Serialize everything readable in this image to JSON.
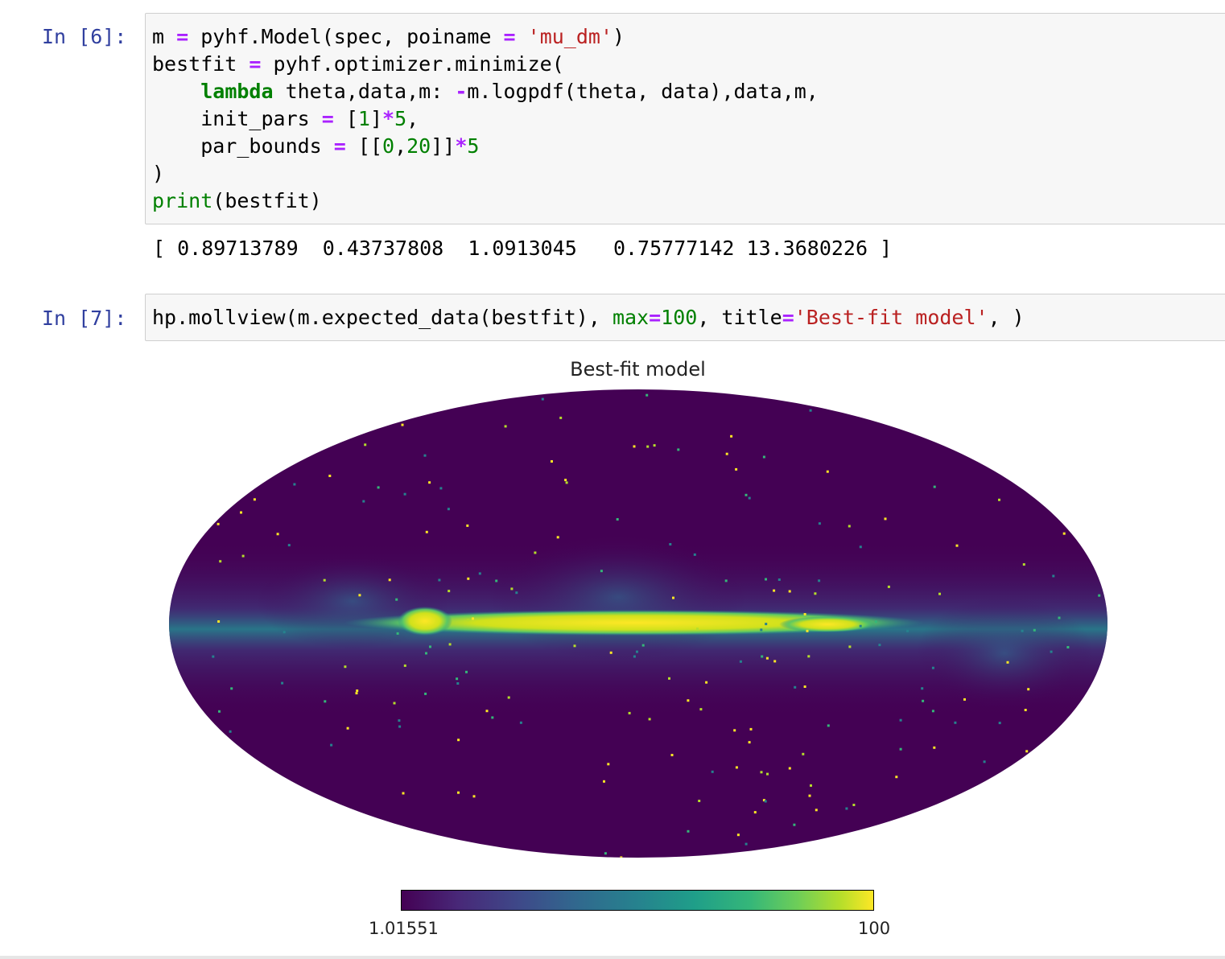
{
  "cells": [
    {
      "prompt": "In [6]:",
      "output": "[ 0.89713789  0.43737808  1.0913045   0.75777142 13.3680226 ]"
    },
    {
      "prompt": "In [7]:"
    }
  ],
  "plot": {
    "title": "Best-fit model",
    "colorbar": {
      "min_label": "1.01551",
      "max_label": "100",
      "colormap": "viridis"
    }
  },
  "colors": {
    "prompt": "#303f9f",
    "keyword": "#008000",
    "operator": "#aa22ff",
    "string": "#ba2121",
    "cell_bg": "#f7f7f7",
    "map_background": "#440154",
    "galactic_plane": "#fde725"
  }
}
